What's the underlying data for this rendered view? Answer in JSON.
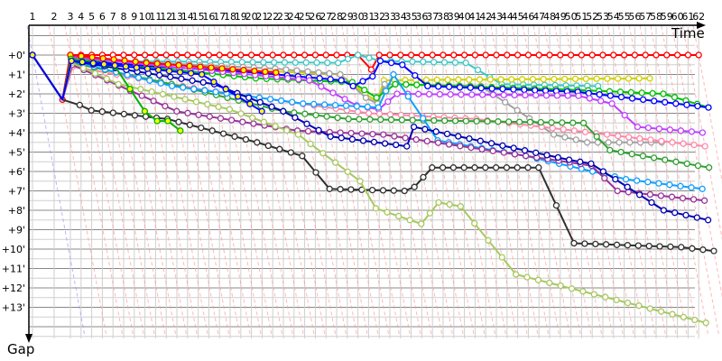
{
  "chart_data": {
    "type": "line",
    "xlabel": "Time",
    "ylabel": "Gap",
    "x_tick_labels": [
      "1",
      "2",
      "3",
      "4",
      "5",
      "6",
      "7",
      "8",
      "9",
      "10",
      "11",
      "12",
      "13",
      "14",
      "15",
      "16",
      "17",
      "18",
      "19",
      "20",
      "21",
      "22",
      "23",
      "24",
      "25",
      "26",
      "27",
      "28",
      "29",
      "30",
      "31",
      "32",
      "33",
      "34",
      "35",
      "36",
      "37",
      "38",
      "39",
      "40",
      "41",
      "42",
      "43",
      "44",
      "45",
      "46",
      "47",
      "48",
      "49",
      "50",
      "51",
      "52",
      "53",
      "54",
      "55",
      "56",
      "57",
      "58",
      "59",
      "60",
      "61",
      "62"
    ],
    "y_tick_labels": [
      "+0'",
      "+1'",
      "+2'",
      "+3'",
      "+4'",
      "+5'",
      "+6'",
      "+7'",
      "+8'",
      "+9'",
      "+10'",
      "+11'",
      "+12'",
      "+13'"
    ],
    "ylim": [
      -1.5,
      14.5
    ],
    "grid": true,
    "lap_marker_color": "#ff9999",
    "series": [
      {
        "color": "#ff0000",
        "fill": "#ffffff",
        "points": [
          [
            1,
            0
          ],
          [
            2,
            2.3
          ],
          [
            3,
            0
          ],
          [
            30,
            0
          ],
          [
            31,
            0.75
          ],
          [
            32,
            0
          ],
          [
            62,
            0
          ]
        ]
      },
      {
        "color": "#40c8c8",
        "fill": "#ffffff",
        "points": [
          [
            1,
            0
          ],
          [
            2,
            2.3
          ],
          [
            3,
            0.3
          ],
          [
            28,
            0.4
          ],
          [
            30,
            0
          ],
          [
            32,
            0.3
          ],
          [
            40,
            0.4
          ],
          [
            43,
            1.5
          ],
          [
            52,
            1.6
          ]
        ]
      },
      {
        "color": "#d0d000",
        "fill": "#ffffff",
        "points": [
          [
            1,
            0
          ],
          [
            2,
            2.3
          ],
          [
            3,
            0.1
          ],
          [
            20,
            0.8
          ],
          [
            28,
            1.0
          ],
          [
            30,
            2.0
          ],
          [
            31,
            2.4
          ],
          [
            32,
            1.3
          ],
          [
            57,
            1.2
          ]
        ]
      },
      {
        "color": "#a0a0a0",
        "fill": "#ffffff",
        "points": [
          [
            1,
            0
          ],
          [
            2,
            2.3
          ],
          [
            3,
            0.2
          ],
          [
            22,
            0.7
          ],
          [
            28,
            1.0
          ],
          [
            30,
            2.2
          ],
          [
            31,
            2.5
          ],
          [
            32,
            1.5
          ],
          [
            41,
            1.6
          ],
          [
            47,
            4.1
          ],
          [
            50,
            4.5
          ],
          [
            57,
            4.5
          ]
        ]
      },
      {
        "color": "#00c000",
        "fill": "#ffffff",
        "points": [
          [
            1,
            0
          ],
          [
            2,
            2.3
          ],
          [
            3,
            0.2
          ],
          [
            20,
            1.2
          ],
          [
            29,
            1.4
          ],
          [
            31,
            2.2
          ],
          [
            33,
            1.5
          ],
          [
            50,
            1.8
          ],
          [
            58,
            2.0
          ],
          [
            62,
            2.7
          ]
        ]
      },
      {
        "color": "#0000ff",
        "fill": "#ffffff",
        "points": [
          [
            1,
            0
          ],
          [
            2,
            2.3
          ],
          [
            3,
            0.3
          ],
          [
            20,
            0.9
          ],
          [
            28,
            1.3
          ],
          [
            29,
            1.6
          ],
          [
            31,
            1.1
          ],
          [
            32,
            0.3
          ],
          [
            34,
            0.5
          ],
          [
            36,
            1.6
          ],
          [
            50,
            1.9
          ],
          [
            56,
            2.3
          ],
          [
            62,
            2.7
          ]
        ]
      },
      {
        "color": "#c040ff",
        "fill": "#ffffff",
        "points": [
          [
            1,
            0
          ],
          [
            2,
            2.3
          ],
          [
            3,
            0.1
          ],
          [
            25,
            1.3
          ],
          [
            29,
            2.6
          ],
          [
            31,
            2.8
          ],
          [
            33,
            2.0
          ],
          [
            50,
            2.1
          ],
          [
            53,
            2.5
          ],
          [
            55,
            3.7
          ],
          [
            61,
            4.0
          ]
        ]
      },
      {
        "color": "#ff88aa",
        "fill": "#ffffff",
        "points": [
          [
            1,
            0
          ],
          [
            2,
            2.3
          ],
          [
            3,
            0.6
          ],
          [
            15,
            1.8
          ],
          [
            30,
            3.0
          ],
          [
            40,
            3.3
          ],
          [
            61,
            4.7
          ]
        ]
      },
      {
        "color": "#30a030",
        "fill": "#ffffff",
        "points": [
          [
            1,
            0
          ],
          [
            2,
            2.3
          ],
          [
            3,
            0.4
          ],
          [
            12,
            1.5
          ],
          [
            22,
            2.9
          ],
          [
            28,
            3.3
          ],
          [
            50,
            3.5
          ],
          [
            52,
            4.9
          ],
          [
            61,
            5.8
          ]
        ]
      },
      {
        "color": "#10a0ff",
        "fill": "#ffffff",
        "points": [
          [
            1,
            0
          ],
          [
            2,
            2.3
          ],
          [
            3,
            0.3
          ],
          [
            12,
            1.6
          ],
          [
            24,
            2.5
          ],
          [
            31,
            2.7
          ],
          [
            33,
            1.0
          ],
          [
            36,
            4.4
          ],
          [
            44,
            5.2
          ],
          [
            53,
            6.4
          ],
          [
            60,
            6.9
          ]
        ]
      },
      {
        "color": "#993399",
        "fill": "#ffffff",
        "points": [
          [
            1,
            0
          ],
          [
            2,
            2.3
          ],
          [
            3,
            0.5
          ],
          [
            12,
            2.9
          ],
          [
            23,
            3.9
          ],
          [
            31,
            4.1
          ],
          [
            50,
            5.7
          ],
          [
            52,
            7.0
          ],
          [
            60,
            7.5
          ]
        ]
      },
      {
        "color": "#0000b0",
        "fill": "#ffffff",
        "points": [
          [
            1,
            0
          ],
          [
            2,
            2.3
          ],
          [
            3,
            0.3
          ],
          [
            16,
            1.5
          ],
          [
            22,
            2.9
          ],
          [
            26,
            4.2
          ],
          [
            33,
            4.7
          ],
          [
            34,
            3.7
          ],
          [
            48,
            5.4
          ],
          [
            50,
            5.6
          ],
          [
            56,
            8.0
          ],
          [
            60,
            8.5
          ]
        ]
      },
      {
        "color": "#303030",
        "fill": "#ffffff",
        "points": [
          [
            1,
            0
          ],
          [
            2,
            2.3
          ],
          [
            4,
            2.85
          ],
          [
            11,
            3.3
          ],
          [
            19,
            4.5
          ],
          [
            23,
            5.2
          ],
          [
            25,
            6.9
          ],
          [
            32,
            7.0
          ],
          [
            33,
            6.8
          ],
          [
            35,
            5.8
          ],
          [
            45,
            5.8
          ],
          [
            47,
            9.7
          ],
          [
            57,
            9.9
          ],
          [
            60,
            10.1
          ]
        ]
      },
      {
        "color": "#a8c860",
        "fill": "#ffffff",
        "points": [
          [
            1,
            0
          ],
          [
            2,
            2.3
          ],
          [
            3,
            0.4
          ],
          [
            7,
            1.5
          ],
          [
            17,
            2.8
          ],
          [
            23,
            4.1
          ],
          [
            28,
            6.5
          ],
          [
            29,
            7.9
          ],
          [
            33,
            8.7
          ],
          [
            35,
            7.6
          ],
          [
            37,
            7.8
          ],
          [
            41,
            11.3
          ],
          [
            58,
            13.8
          ]
        ]
      },
      {
        "color": "#ff0000",
        "fill": "#ffff00",
        "points": [
          [
            1,
            0
          ],
          [
            2,
            2.3
          ],
          [
            3,
            0
          ],
          [
            10,
            0.4
          ],
          [
            22,
            0.9
          ]
        ]
      },
      {
        "color": "#00b000",
        "fill": "#ffff00",
        "points": [
          [
            1,
            0
          ],
          [
            2,
            2.3
          ],
          [
            3,
            0.2
          ],
          [
            7,
            0.6
          ],
          [
            9,
            2.9
          ],
          [
            10,
            3.4
          ],
          [
            11,
            3.4
          ],
          [
            12,
            3.9
          ]
        ]
      },
      {
        "color": "#0000ff",
        "fill": "#ffff00",
        "points": [
          [
            1,
            0
          ],
          [
            2,
            2.3
          ],
          [
            3,
            0.3
          ],
          [
            15,
            1.0
          ],
          [
            20,
            2.9
          ]
        ]
      }
    ]
  }
}
